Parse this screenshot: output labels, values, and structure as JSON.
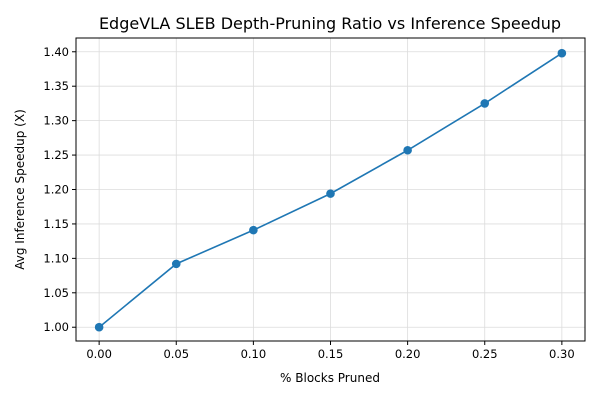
{
  "chart_data": {
    "type": "line",
    "title": "EdgeVLA SLEB Depth-Pruning Ratio vs Inference Speedup",
    "xlabel": "% Blocks Pruned",
    "ylabel": "Avg Inference Speedup (X)",
    "x": [
      0.0,
      0.05,
      0.1,
      0.15,
      0.2,
      0.25,
      0.3
    ],
    "series": [
      {
        "values": [
          1.0,
          1.092,
          1.141,
          1.194,
          1.257,
          1.325,
          1.398
        ],
        "color": "#1f77b4",
        "marker": "circle"
      }
    ],
    "xlim": [
      -0.015,
      0.315
    ],
    "ylim": [
      0.98,
      1.42
    ],
    "xticks": [
      0.0,
      0.05,
      0.1,
      0.15,
      0.2,
      0.25,
      0.3
    ],
    "xtick_labels": [
      "0.00",
      "0.05",
      "0.10",
      "0.15",
      "0.20",
      "0.25",
      "0.30"
    ],
    "yticks": [
      1.0,
      1.05,
      1.1,
      1.15,
      1.2,
      1.25,
      1.3,
      1.35,
      1.4
    ],
    "ytick_labels": [
      "1.00",
      "1.05",
      "1.10",
      "1.15",
      "1.20",
      "1.25",
      "1.30",
      "1.35",
      "1.40"
    ],
    "grid": true,
    "legend": "none"
  }
}
